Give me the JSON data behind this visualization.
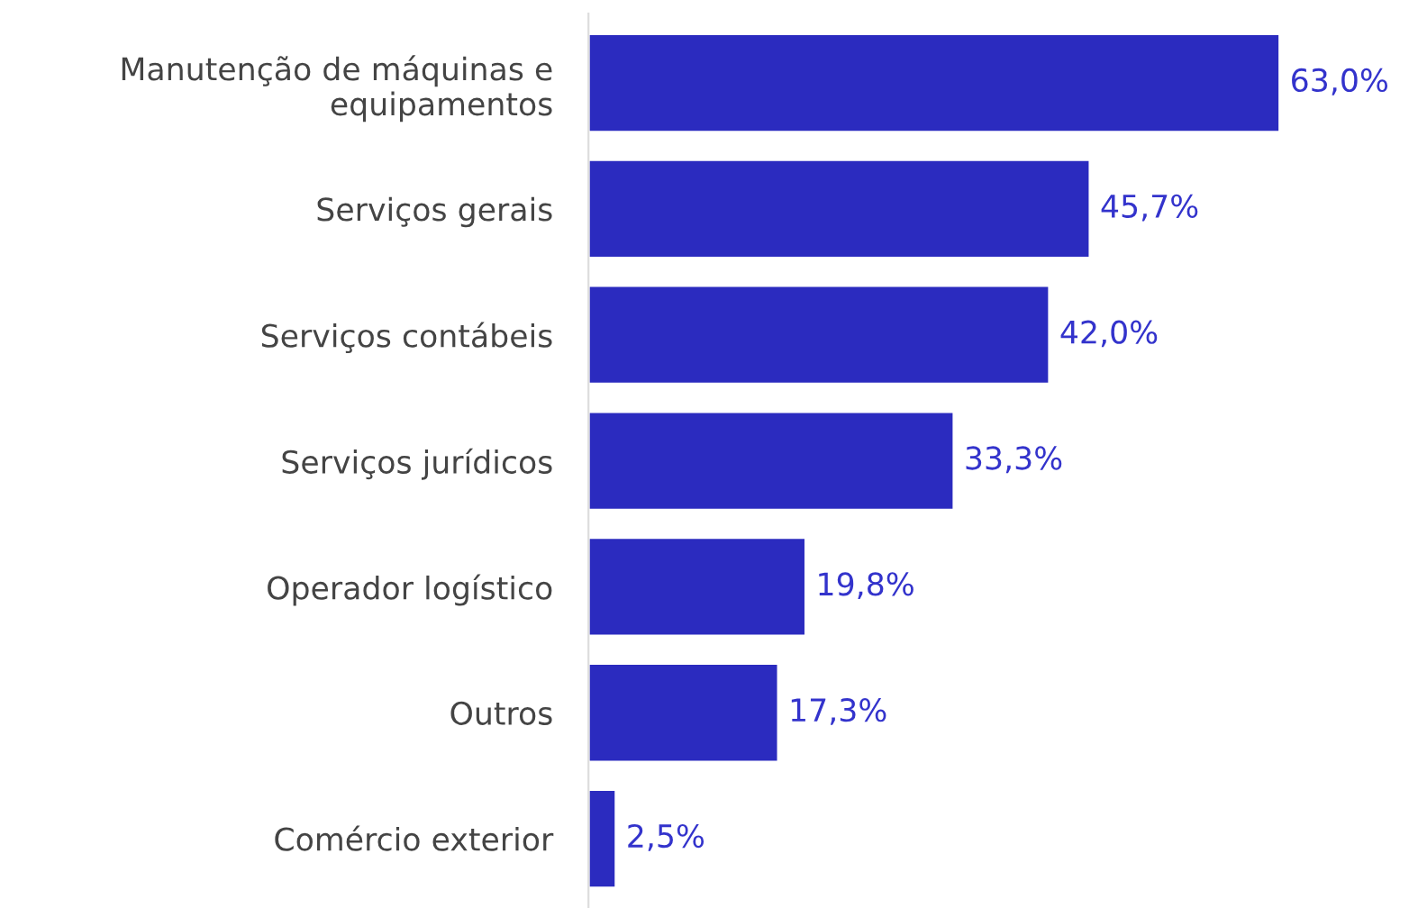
{
  "chart_data": {
    "type": "bar",
    "orientation": "horizontal",
    "categories": [
      "Manutenção de máquinas e\nequipamentos",
      "Serviços gerais",
      "Serviços contábeis",
      "Serviços jurídicos",
      "Operador logístico",
      "Outros",
      "Comércio exterior"
    ],
    "values": [
      63.0,
      45.7,
      42.0,
      33.3,
      19.8,
      17.3,
      2.5
    ],
    "value_labels": [
      "63,0%",
      "45,7%",
      "42,0%",
      "33,3%",
      "19,8%",
      "17,3%",
      "2,5%"
    ],
    "color": "#2b2bbf",
    "grid": false,
    "legend": false
  }
}
